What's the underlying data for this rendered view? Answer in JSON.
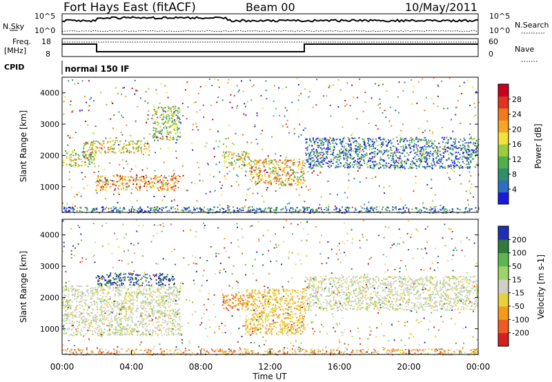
{
  "header": {
    "title": "Fort Hays East (fitACF)",
    "beam": "Beam 00",
    "date": "10/May/2011"
  },
  "noise_panel": {
    "left_label": "N.Sky",
    "right_label": "N.Search",
    "left_ticks": [
      "10^5",
      "10^0"
    ],
    "right_ticks": [
      "10^5",
      "10^0"
    ]
  },
  "freq_panel": {
    "left_label_1": "Freq.",
    "left_label_2": "[MHz]",
    "right_label": "Nave",
    "left_ticks": [
      "18",
      "8"
    ],
    "right_ticks": [
      "60",
      "0"
    ]
  },
  "cpid": {
    "label": "CPID",
    "mode": "normal 150 IF"
  },
  "colors": {
    "power": [
      "#1a1adc",
      "#2d6fc2",
      "#2f8f6b",
      "#4fb04a",
      "#9ccb3b",
      "#f2e23a",
      "#f5a623",
      "#f07a1c",
      "#e0341d",
      "#c8001e"
    ],
    "velocity": [
      "#1f2fb4",
      "#2e7b3a",
      "#5cb84c",
      "#9bd46b",
      "#cfcfc8",
      "#e8d23a",
      "#f39a1b",
      "#f15a22",
      "#d81e1e"
    ]
  },
  "chart_data": [
    {
      "type": "heatmap",
      "title": "",
      "ylabel": "Slant Range [km]",
      "xlabel": "",
      "ylim": [
        180,
        4500
      ],
      "yticks": [
        "1000",
        "2000",
        "3000",
        "4000"
      ],
      "colorbar_label": "Power [dB]",
      "colorbar_ticks": [
        "4",
        "8",
        "12",
        "16",
        "20",
        "24",
        "28"
      ],
      "features": [
        {
          "t0": 0.0,
          "t1": 1.9,
          "r0": 1650,
          "r1": 2200,
          "level": 0.45
        },
        {
          "t0": 1.9,
          "t1": 6.8,
          "r0": 900,
          "r1": 1400,
          "level": 0.7
        },
        {
          "t0": 1.2,
          "t1": 5.0,
          "r0": 2100,
          "r1": 2500,
          "level": 0.55
        },
        {
          "t0": 5.2,
          "t1": 6.8,
          "r0": 2500,
          "r1": 3600,
          "level": 0.4
        },
        {
          "t0": 9.2,
          "t1": 10.8,
          "r0": 1650,
          "r1": 2150,
          "level": 0.5
        },
        {
          "t0": 10.8,
          "t1": 14.0,
          "r0": 1050,
          "r1": 1900,
          "level": 0.6
        },
        {
          "t0": 14.0,
          "t1": 24.0,
          "r0": 1600,
          "r1": 2600,
          "level": 0.2
        }
      ]
    },
    {
      "type": "heatmap",
      "title": "",
      "ylabel": "Slant Range [km]",
      "xlabel": "Time UT",
      "ylim": [
        180,
        4500
      ],
      "yticks": [
        "1000",
        "2000",
        "3000",
        "4000"
      ],
      "xticks": [
        "00:00",
        "04:00",
        "08:00",
        "12:00",
        "16:00",
        "20:00",
        "00:00"
      ],
      "xlim": [
        0,
        24
      ],
      "colorbar_label": "Velocity [m s-1]",
      "colorbar_ticks": [
        "200",
        "100",
        "50",
        "15",
        "-15",
        "-50",
        "-100",
        "-200"
      ],
      "features": [
        {
          "t0": 0.0,
          "t1": 6.8,
          "r0": 800,
          "r1": 2400,
          "level": 0.0
        },
        {
          "t0": 2.0,
          "t1": 6.5,
          "r0": 2400,
          "r1": 2800,
          "level": 0.8
        },
        {
          "t0": 9.2,
          "t1": 11.0,
          "r0": 1650,
          "r1": 2150,
          "level": -0.5
        },
        {
          "t0": 10.5,
          "t1": 14.0,
          "r0": 850,
          "r1": 2300,
          "level": -0.3
        },
        {
          "t0": 14.0,
          "t1": 24.0,
          "r0": 1600,
          "r1": 2700,
          "level": 0.0
        }
      ]
    }
  ]
}
